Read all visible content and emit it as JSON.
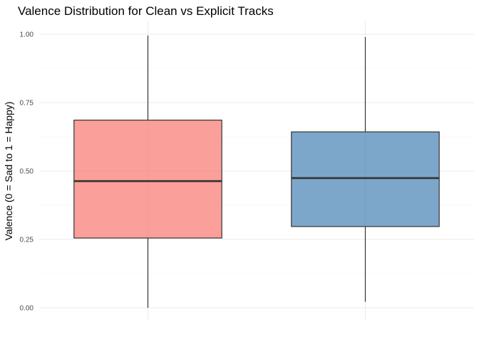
{
  "chart_data": {
    "type": "boxplot",
    "title": "Valence Distribution for Clean vs Explicit Tracks",
    "xlabel": "",
    "ylabel": "Valence (0 = Sad to 1 = Happy)",
    "ylim": [
      0,
      1
    ],
    "y_ticks": [
      "0.00",
      "0.25",
      "0.50",
      "0.75",
      "1.00"
    ],
    "categories": [
      "",
      ""
    ],
    "boxes": [
      {
        "min": 0.0,
        "q1": 0.255,
        "median": 0.463,
        "q3": 0.686,
        "max": 0.995,
        "color": "#F8766D"
      },
      {
        "min": 0.022,
        "q1": 0.297,
        "median": 0.474,
        "q3": 0.643,
        "max": 0.99,
        "color": "#4682B4"
      }
    ],
    "grid": true,
    "legend": "none"
  }
}
